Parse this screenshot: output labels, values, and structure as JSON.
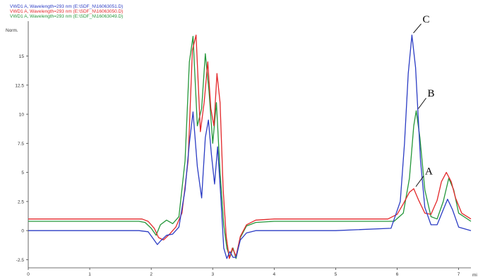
{
  "chart_data": {
    "type": "line",
    "title": "",
    "xlabel": "",
    "ylabel": "",
    "y_unit_label": "Norm.",
    "x_unit_label": "mi",
    "xlim": [
      0,
      7.2
    ],
    "ylim": [
      -3.2,
      18
    ],
    "x_ticks": [
      "0",
      "1",
      "2",
      "3",
      "4",
      "5",
      "6",
      "7"
    ],
    "y_ticks": [
      "-2.5",
      "0",
      "2.5",
      "5",
      "7.5",
      "10",
      "12.5",
      "15"
    ],
    "grid": false,
    "legend_placement": "top-left",
    "legend": [
      "VWD1 A, Wavelength=293 nm (E:\\SDF_N\\16063051.D)",
      "VWD1 A, Wavelength=293 nm (E:\\SDF_N\\16063050.D)",
      "VWD1 A, Wavelength=293 nm (E:\\SDF_N\\16063049.D)"
    ],
    "colors": [
      "#2b3cc4",
      "#e3282a",
      "#24973a"
    ],
    "series": [
      {
        "color": "#2b3cc4",
        "x": [
          0,
          1.8,
          1.95,
          2.02,
          2.1,
          2.15,
          2.25,
          2.35,
          2.45,
          2.55,
          2.62,
          2.68,
          2.75,
          2.82,
          2.88,
          2.93,
          2.98,
          3.03,
          3.08,
          3.13,
          3.18,
          3.23,
          3.28,
          3.33,
          3.38,
          3.45,
          3.55,
          3.7,
          4.0,
          5.0,
          5.9,
          6.05,
          6.12,
          6.18,
          6.24,
          6.3,
          6.38,
          6.45,
          6.55,
          6.65,
          6.75,
          6.82,
          6.9,
          7.0,
          7.2
        ],
        "y": [
          0,
          0,
          -0.1,
          -0.6,
          -1.2,
          -0.9,
          -0.4,
          -0.3,
          0.3,
          3.5,
          7.5,
          10.2,
          5.5,
          2.8,
          8.0,
          9.5,
          6.5,
          4.0,
          7.2,
          3.0,
          -1.5,
          -2.4,
          -1.8,
          -2.3,
          -2.3,
          -0.8,
          -0.2,
          0,
          0,
          0,
          0.2,
          2.5,
          7.5,
          13.5,
          16.8,
          14.0,
          6.0,
          2.0,
          0.5,
          0.5,
          1.8,
          2.7,
          1.8,
          0.3,
          0
        ]
      },
      {
        "color": "#e3282a",
        "x": [
          0,
          1.85,
          1.95,
          2.05,
          2.12,
          2.2,
          2.3,
          2.4,
          2.5,
          2.6,
          2.67,
          2.73,
          2.8,
          2.86,
          2.92,
          2.97,
          3.02,
          3.07,
          3.12,
          3.17,
          3.22,
          3.27,
          3.32,
          3.38,
          3.45,
          3.55,
          3.7,
          4.0,
          5.0,
          5.85,
          6.0,
          6.1,
          6.2,
          6.27,
          6.35,
          6.45,
          6.55,
          6.65,
          6.72,
          6.8,
          6.88,
          6.95,
          7.05,
          7.2
        ],
        "y": [
          1.0,
          1.0,
          0.8,
          0.2,
          -0.6,
          -0.8,
          -0.3,
          0.3,
          1.5,
          6.0,
          15.5,
          16.8,
          8.5,
          11.0,
          14.5,
          10.5,
          9.0,
          13.5,
          11.0,
          3.5,
          -0.5,
          -2.4,
          -1.5,
          -2.2,
          -0.5,
          0.5,
          0.9,
          1.0,
          1.0,
          1.0,
          1.4,
          2.3,
          3.3,
          3.6,
          2.6,
          1.5,
          1.4,
          2.6,
          4.2,
          5.0,
          4.2,
          2.8,
          1.5,
          1.0
        ]
      },
      {
        "color": "#24973a",
        "x": [
          0,
          1.8,
          1.9,
          2.0,
          2.08,
          2.15,
          2.25,
          2.35,
          2.45,
          2.55,
          2.62,
          2.68,
          2.75,
          2.82,
          2.88,
          2.94,
          3.0,
          3.06,
          3.12,
          3.18,
          3.23,
          3.28,
          3.33,
          3.38,
          3.45,
          3.55,
          3.7,
          4.0,
          5.0,
          5.95,
          6.1,
          6.2,
          6.27,
          6.31,
          6.37,
          6.45,
          6.55,
          6.65,
          6.75,
          6.84,
          6.92,
          7.0,
          7.2
        ],
        "y": [
          0.8,
          0.8,
          0.7,
          0.2,
          -0.4,
          0.5,
          0.9,
          0.6,
          1.2,
          6.0,
          14.5,
          16.7,
          9.0,
          10.5,
          15.2,
          12.0,
          7.5,
          11.0,
          5.0,
          0.5,
          -1.5,
          -2.3,
          -1.5,
          -2.4,
          -0.6,
          0.4,
          0.7,
          0.8,
          0.8,
          0.8,
          1.5,
          4.5,
          9.0,
          10.3,
          8.0,
          3.5,
          1.2,
          1.0,
          2.5,
          4.5,
          3.5,
          1.5,
          0.8
        ]
      }
    ],
    "annotations": [
      {
        "text": "C",
        "x": 6.23,
        "y": 16.8
      },
      {
        "text": "B",
        "x": 6.31,
        "y": 10.3
      },
      {
        "text": "A",
        "x": 6.27,
        "y": 3.6
      }
    ]
  }
}
